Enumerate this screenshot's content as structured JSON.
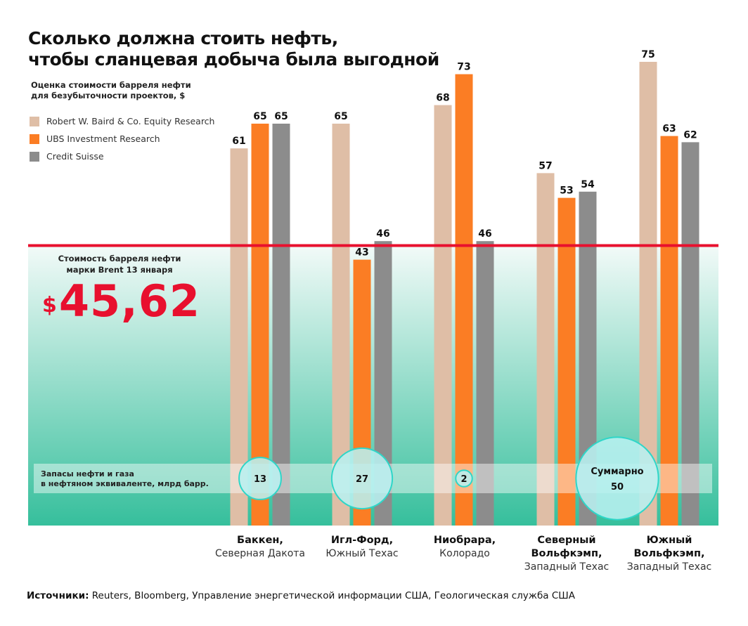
{
  "chart_data": {
    "type": "bar",
    "title": "Сколько должна стоить нефть,\nчтобы сланцевая добыча была выгодной",
    "title_lines": [
      "Сколько должна стоить нефть,",
      "чтобы сланцевая добыча была выгодной"
    ],
    "subtitle_lines": [
      "Оценка стоимости барреля нефти",
      "для безубыточности проектов, $"
    ],
    "categories": [
      {
        "name": "Баккен,",
        "region": "Северная Дакота"
      },
      {
        "name": "Игл-Форд,",
        "region": "Южный Техас"
      },
      {
        "name": "Ниобрара,",
        "region": "Колорадо"
      },
      {
        "name": "Северный Вольфкэмп,",
        "region": "Западный Техас"
      },
      {
        "name": "Южный Вольфкэмп,",
        "region": "Западный Техас"
      }
    ],
    "series": [
      {
        "name": "Robert W. Baird & Co. Equity Research",
        "color": "#dfbea6",
        "values": [
          61,
          65,
          68,
          57,
          75
        ]
      },
      {
        "name": "UBS Investment Research",
        "color": "#fb7d24",
        "values": [
          65,
          43,
          73,
          53,
          63
        ]
      },
      {
        "name": "Credit Suisse",
        "color": "#8c8c8c",
        "values": [
          65,
          46,
          46,
          54,
          62
        ]
      }
    ],
    "ylim": [
      0,
      80
    ],
    "legend_placement": "top-left",
    "grid": false,
    "reference_line": {
      "value": 45.62,
      "color": "#e8102e",
      "label_lines": [
        "Стоимость барреля нефти",
        "марки Brent 13 января"
      ],
      "currency": "$",
      "value_text": "45,62"
    },
    "reserves": {
      "label_lines": [
        "Запасы нефти и газа",
        "в нефтяном эквиваленте, млрд барр."
      ],
      "bubbles": [
        {
          "category": 0,
          "value": 13,
          "text": "13"
        },
        {
          "category": 1,
          "value": 27,
          "text": "27"
        },
        {
          "category": 2,
          "value": 2,
          "text": "2"
        },
        {
          "category": "3-4",
          "value": 50,
          "text_lines": [
            "Суммарно",
            "50"
          ]
        }
      ]
    },
    "source_label": "Источники:",
    "source_text": "Reuters, Bloomberg, Управление энергетической информации США, Геологическая служба США"
  },
  "colors": {
    "background_gradient_top": "#f2faf8",
    "background_gradient_bottom": "#36bf9c",
    "bubble": "#b8f0f0",
    "bubble_stroke": "#2fd6c8"
  }
}
